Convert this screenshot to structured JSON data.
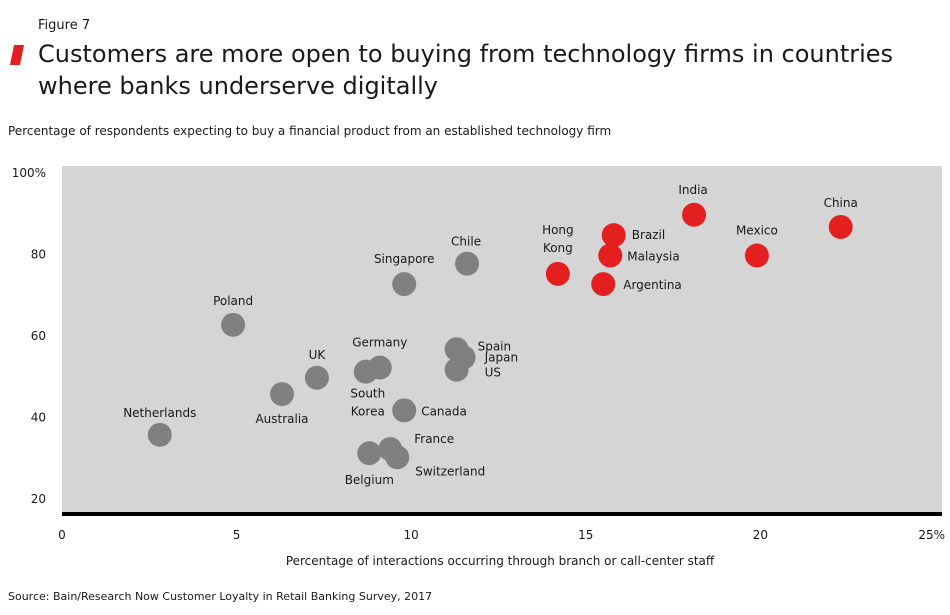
{
  "figure_label": "Figure 7",
  "title": "Customers are more open to buying from technology firms in countries where banks underserve digitally",
  "source": "Source: Bain/Research Now Customer Loyalty in Retail Banking Survey, 2017",
  "colors": {
    "plot_bg": "#d5d5d6",
    "gray_point": "#808083",
    "red_point": "#e3201f",
    "axis": "#000000",
    "accent": "#e3201f"
  },
  "chart_data": {
    "type": "scatter",
    "title": "Customers are more open to buying from technology firms in countries where banks underserve digitally",
    "ylabel": "Percentage of respondents expecting to buy a financial product from an established technology firm",
    "xlabel": "Percentage of interactions occurring through branch or call-center staff",
    "xlim": [
      0,
      25
    ],
    "ylim": [
      16,
      100
    ],
    "x_ticks": [
      {
        "value": 0,
        "label": "0"
      },
      {
        "value": 5,
        "label": "5"
      },
      {
        "value": 10,
        "label": "10"
      },
      {
        "value": 15,
        "label": "15"
      },
      {
        "value": 20,
        "label": "20"
      },
      {
        "value": 25,
        "label": "25%"
      }
    ],
    "y_ticks": [
      {
        "value": 100,
        "label": "100%"
      },
      {
        "value": 80,
        "label": "80"
      },
      {
        "value": 60,
        "label": "60"
      },
      {
        "value": 40,
        "label": "40"
      },
      {
        "value": 20,
        "label": "20"
      }
    ],
    "series": [
      {
        "name": "gray",
        "color": "#808083",
        "points": [
          {
            "label": "Netherlands",
            "x": 2.8,
            "y": 35.5
          },
          {
            "label": "Poland",
            "x": 4.9,
            "y": 62.5
          },
          {
            "label": "Australia",
            "x": 6.3,
            "y": 45.5
          },
          {
            "label": "UK",
            "x": 7.3,
            "y": 49.5
          },
          {
            "label": "Germany",
            "x": 9.1,
            "y": 52.0
          },
          {
            "label": "South Korea",
            "x": 8.7,
            "y": 51.0
          },
          {
            "label": "Canada",
            "x": 9.8,
            "y": 41.5
          },
          {
            "label": "France",
            "x": 9.4,
            "y": 32.0
          },
          {
            "label": "Belgium",
            "x": 8.8,
            "y": 31.0
          },
          {
            "label": "Switzerland",
            "x": 9.6,
            "y": 30.0
          },
          {
            "label": "Singapore",
            "x": 9.8,
            "y": 72.5
          },
          {
            "label": "Chile",
            "x": 11.6,
            "y": 77.5
          },
          {
            "label": "Spain",
            "x": 11.3,
            "y": 56.5
          },
          {
            "label": "Japan",
            "x": 11.5,
            "y": 54.5
          },
          {
            "label": "US",
            "x": 11.3,
            "y": 51.5
          }
        ]
      },
      {
        "name": "red",
        "color": "#e3201f",
        "points": [
          {
            "label": "Hong Kong",
            "x": 14.2,
            "y": 75.0
          },
          {
            "label": "Brazil",
            "x": 15.8,
            "y": 84.5
          },
          {
            "label": "Malaysia",
            "x": 15.7,
            "y": 79.5
          },
          {
            "label": "Argentina",
            "x": 15.5,
            "y": 72.5
          },
          {
            "label": "India",
            "x": 18.1,
            "y": 89.5
          },
          {
            "label": "Mexico",
            "x": 19.9,
            "y": 79.5
          },
          {
            "label": "China",
            "x": 22.3,
            "y": 86.5
          }
        ]
      }
    ],
    "annotations": [
      {
        "text": "Netherlands",
        "for": "Netherlands"
      },
      {
        "text": "Poland",
        "for": "Poland"
      },
      {
        "text": "Australia",
        "for": "Australia"
      },
      {
        "text": "UK",
        "for": "UK"
      },
      {
        "text": "Germany",
        "for": "Germany"
      },
      {
        "text": "South",
        "for": "South Korea"
      },
      {
        "text": "Korea",
        "for": "South Korea"
      },
      {
        "text": "Canada",
        "for": "Canada"
      },
      {
        "text": "France",
        "for": "France"
      },
      {
        "text": "Belgium",
        "for": "Belgium"
      },
      {
        "text": "Switzerland",
        "for": "Switzerland"
      },
      {
        "text": "Singapore",
        "for": "Singapore"
      },
      {
        "text": "Chile",
        "for": "Chile"
      },
      {
        "text": "Spain",
        "for": "Spain"
      },
      {
        "text": "Japan",
        "for": "Japan"
      },
      {
        "text": "US",
        "for": "US"
      },
      {
        "text": "Hong",
        "for": "Hong Kong"
      },
      {
        "text": "Kong",
        "for": "Hong Kong"
      },
      {
        "text": "Brazil",
        "for": "Brazil"
      },
      {
        "text": "Malaysia",
        "for": "Malaysia"
      },
      {
        "text": "Argentina",
        "for": "Argentina"
      },
      {
        "text": "India",
        "for": "India"
      },
      {
        "text": "Mexico",
        "for": "Mexico"
      },
      {
        "text": "China",
        "for": "China"
      }
    ]
  }
}
